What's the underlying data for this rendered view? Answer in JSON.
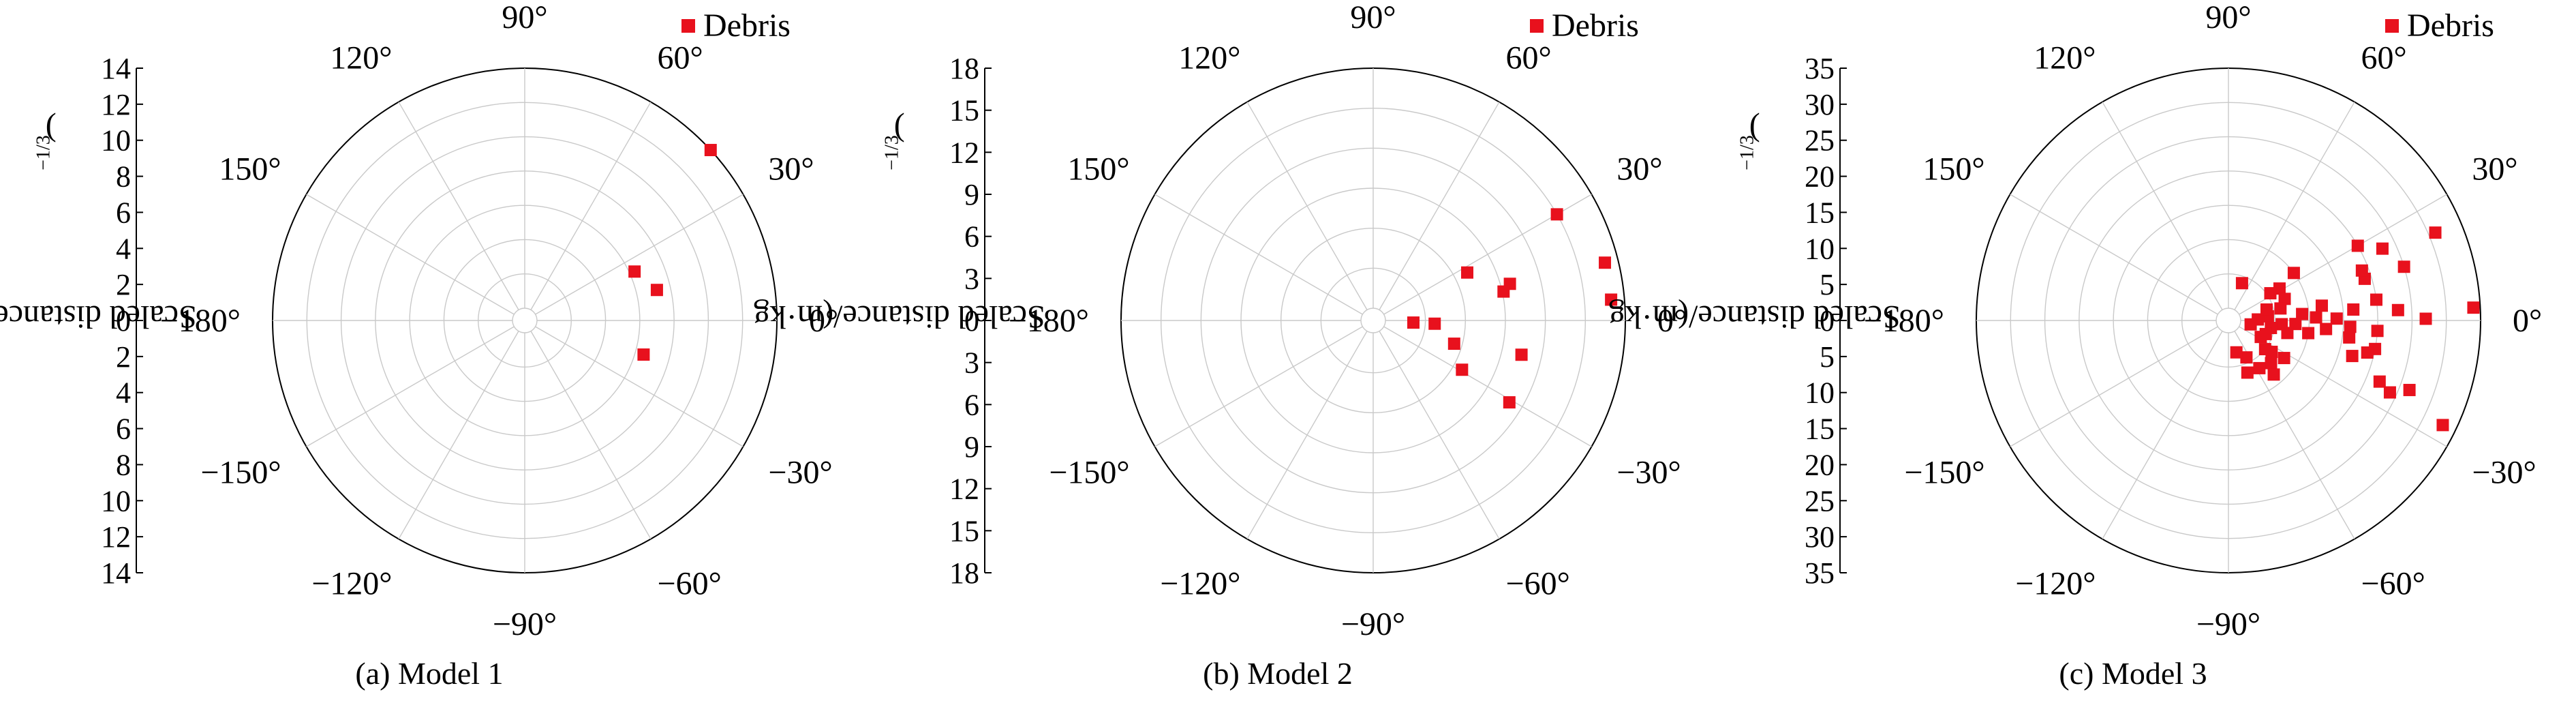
{
  "figure": {
    "legend_label": "Debris",
    "point_color": "#e8111d",
    "grid_color": "#c9c9c9"
  },
  "chart_data": [
    {
      "type": "scatter",
      "subtype": "polar",
      "caption": "(a) Model 1",
      "ylabel_main": "Scaled distance/(m·kg",
      "ylabel_exp": "−1/3",
      "ylabel_end": ")",
      "legend": "Debris",
      "r_max": 14,
      "r_ticks": [
        "14",
        "12",
        "10",
        "8",
        "6",
        "4",
        "2",
        "0",
        "2",
        "4",
        "6",
        "8",
        "10",
        "12",
        "14"
      ],
      "ring_count": 7,
      "angle_ticks": [
        {
          "deg": 90,
          "label": "90°"
        },
        {
          "deg": 60,
          "label": "60°"
        },
        {
          "deg": 30,
          "label": "30°"
        },
        {
          "deg": 0,
          "label": "0°"
        },
        {
          "deg": -30,
          "label": "−30°"
        },
        {
          "deg": -60,
          "label": "−60°"
        },
        {
          "deg": -90,
          "label": "−90°"
        },
        {
          "deg": -120,
          "label": "−120°"
        },
        {
          "deg": -150,
          "label": "−150°"
        },
        {
          "deg": 180,
          "label": "−180°"
        },
        {
          "deg": 150,
          "label": "150°"
        },
        {
          "deg": 120,
          "label": "120°"
        }
      ],
      "points": [
        {
          "angle": 42.5,
          "r": 14.0
        },
        {
          "angle": 24.0,
          "r": 6.3
        },
        {
          "angle": 13.0,
          "r": 7.2
        },
        {
          "angle": -16.0,
          "r": 6.5
        }
      ]
    },
    {
      "type": "scatter",
      "subtype": "polar",
      "caption": "(b) Model 2",
      "ylabel_main": "Scaled distance/(m·kg",
      "ylabel_exp": "−1/3",
      "ylabel_end": ")",
      "legend": "Debris",
      "r_max": 18,
      "r_ticks": [
        "18",
        "15",
        "12",
        "9",
        "6",
        "3",
        "0",
        "3",
        "6",
        "9",
        "12",
        "15",
        "18"
      ],
      "ring_count": 6,
      "angle_ticks": [
        {
          "deg": 90,
          "label": "90°"
        },
        {
          "deg": 60,
          "label": "60°"
        },
        {
          "deg": 30,
          "label": "30°"
        },
        {
          "deg": 0,
          "label": "0°"
        },
        {
          "deg": -30,
          "label": "−30°"
        },
        {
          "deg": -60,
          "label": "−60°"
        },
        {
          "deg": -90,
          "label": "−90°"
        },
        {
          "deg": -120,
          "label": "−120°"
        },
        {
          "deg": -150,
          "label": "−150°"
        },
        {
          "deg": 180,
          "label": "−180°"
        },
        {
          "deg": 150,
          "label": "150°"
        },
        {
          "deg": 120,
          "label": "120°"
        }
      ],
      "points": [
        {
          "angle": 30.0,
          "r": 15.0
        },
        {
          "angle": 14.0,
          "r": 17.0
        },
        {
          "angle": 5.0,
          "r": 17.0
        },
        {
          "angle": 15.0,
          "r": 9.7
        },
        {
          "angle": 12.5,
          "r": 9.1
        },
        {
          "angle": 27.0,
          "r": 7.0
        },
        {
          "angle": -13.0,
          "r": 10.5
        },
        {
          "angle": -31.0,
          "r": 11.0
        },
        {
          "angle": -29.0,
          "r": 6.7
        },
        {
          "angle": -16.0,
          "r": 5.4
        },
        {
          "angle": -3.0,
          "r": 3.7
        },
        {
          "angle": -3.0,
          "r": 2.1
        }
      ]
    },
    {
      "type": "scatter",
      "subtype": "polar",
      "caption": "(c) Model 3",
      "ylabel_main": "Scaled distance/(m·kg",
      "ylabel_exp": "−1/3",
      "ylabel_end": ")",
      "legend": "Debris",
      "r_max": 35,
      "r_ticks": [
        "35",
        "30",
        "25",
        "20",
        "15",
        "10",
        "5",
        "0",
        "5",
        "10",
        "15",
        "20",
        "25",
        "30",
        "35"
      ],
      "ring_count": 7,
      "angle_ticks": [
        {
          "deg": 90,
          "label": "90°"
        },
        {
          "deg": 60,
          "label": "60°"
        },
        {
          "deg": 30,
          "label": "30°"
        },
        {
          "deg": 0,
          "label": "0°"
        },
        {
          "deg": -30,
          "label": "−30°"
        },
        {
          "deg": -60,
          "label": "−60°"
        },
        {
          "deg": -90,
          "label": "−90°"
        },
        {
          "deg": -120,
          "label": "−120°"
        },
        {
          "deg": -150,
          "label": "−150°"
        },
        {
          "deg": 180,
          "label": "−180°"
        },
        {
          "deg": 150,
          "label": "150°"
        },
        {
          "deg": 120,
          "label": "120°"
        }
      ],
      "points": [
        {
          "angle": 3.0,
          "r": 34.0
        },
        {
          "angle": 23.0,
          "r": 31.0
        },
        {
          "angle": -26.0,
          "r": 33.0
        },
        {
          "angle": 0.5,
          "r": 27.0
        },
        {
          "angle": 25.0,
          "r": 23.0
        },
        {
          "angle": 17.0,
          "r": 25.0
        },
        {
          "angle": 30.0,
          "r": 20.0
        },
        {
          "angle": 3.5,
          "r": 23.0
        },
        {
          "angle": 17.0,
          "r": 19.0
        },
        {
          "angle": 20.5,
          "r": 19.0
        },
        {
          "angle": 8.0,
          "r": 20.0
        },
        {
          "angle": -4.0,
          "r": 20.0
        },
        {
          "angle": -11.0,
          "r": 20.0
        },
        {
          "angle": -22.0,
          "r": 22.0
        },
        {
          "angle": -24.0,
          "r": 24.0
        },
        {
          "angle": -21.0,
          "r": 26.5
        },
        {
          "angle": 5.0,
          "r": 16.5
        },
        {
          "angle": 1.0,
          "r": 14.0
        },
        {
          "angle": -3.0,
          "r": 16.0
        },
        {
          "angle": -8.0,
          "r": 16.0
        },
        {
          "angle": -16.0,
          "r": 17.0
        },
        {
          "angle": -13.0,
          "r": 19.0
        },
        {
          "angle": 2.0,
          "r": 11.0
        },
        {
          "angle": 5.0,
          "r": 9.0
        },
        {
          "angle": 9.0,
          "r": 12.0
        },
        {
          "angle": -5.0,
          "r": 12.5
        },
        {
          "angle": -9.0,
          "r": 10.0
        },
        {
          "angle": -3.0,
          "r": 8.0
        },
        {
          "angle": -4.0,
          "r": 6.0
        },
        {
          "angle": -12.0,
          "r": 7.0
        },
        {
          "angle": 36.0,
          "r": 10.0
        },
        {
          "angle": 32.0,
          "r": 7.0
        },
        {
          "angle": 21.0,
          "r": 7.0
        },
        {
          "angle": 13.0,
          "r": 6.0
        },
        {
          "angle": 33.0,
          "r": 5.5
        },
        {
          "angle": 6.0,
          "r": 4.0
        },
        {
          "angle": -10.0,
          "r": 4.5
        },
        {
          "angle": 2.0,
          "r": 2.5
        },
        {
          "angle": -27.0,
          "r": 3.5
        },
        {
          "angle": -36.0,
          "r": 6.0
        },
        {
          "angle": -34.0,
          "r": 8.0
        },
        {
          "angle": -38.0,
          "r": 5.0
        },
        {
          "angle": -45.0,
          "r": 7.0
        },
        {
          "angle": -50.0,
          "r": 8.5
        },
        {
          "angle": -57.0,
          "r": 6.5
        },
        {
          "angle": -64.0,
          "r": 4.2
        },
        {
          "angle": -70.0,
          "r": 6.3
        },
        {
          "angle": -76.0,
          "r": 3.0
        },
        {
          "angle": 70.0,
          "r": 4.0
        },
        {
          "angle": 16.0,
          "r": 4.0
        },
        {
          "angle": -20.0,
          "r": 4.0
        },
        {
          "angle": -10.0,
          "r": 1.5
        }
      ]
    }
  ]
}
